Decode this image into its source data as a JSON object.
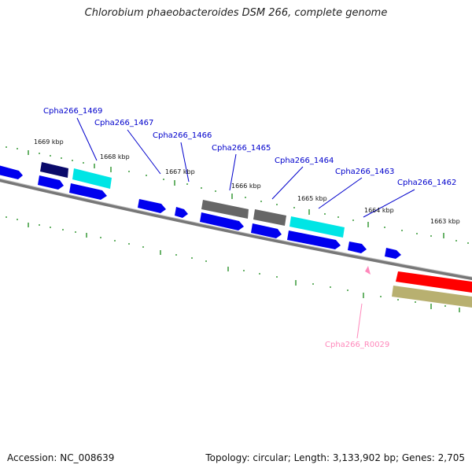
{
  "title": "Chlorobium phaeobacteroides DSM 266, complete genome",
  "footer": {
    "accession": "Accession: NC_008639",
    "summary": "Topology: circular; Length: 3,133,902 bp; Genes: 2,705"
  },
  "kbp_ticks": [
    "1669 kbp",
    "1668 kbp",
    "1667 kbp",
    "1666 kbp",
    "1665 kbp",
    "1664 kbp",
    "1663 kbp"
  ],
  "gene_labels": [
    "Cpha266_1469",
    "Cpha266_1467",
    "Cpha266_1466",
    "Cpha266_1465",
    "Cpha266_1464",
    "Cpha266_1463",
    "Cpha266_1462"
  ],
  "rna_label": "Cpha266_R0029",
  "colors": {
    "cds": "#0000ee",
    "navy": "#0a0a6a",
    "cyan": "#00e5e5",
    "gray": "#666666",
    "red": "#ff0000",
    "tan": "#b8b070",
    "tick": "#1a8a1a",
    "label": "#0000cc",
    "rna": "#ff88bb",
    "backbone": "#777777"
  }
}
